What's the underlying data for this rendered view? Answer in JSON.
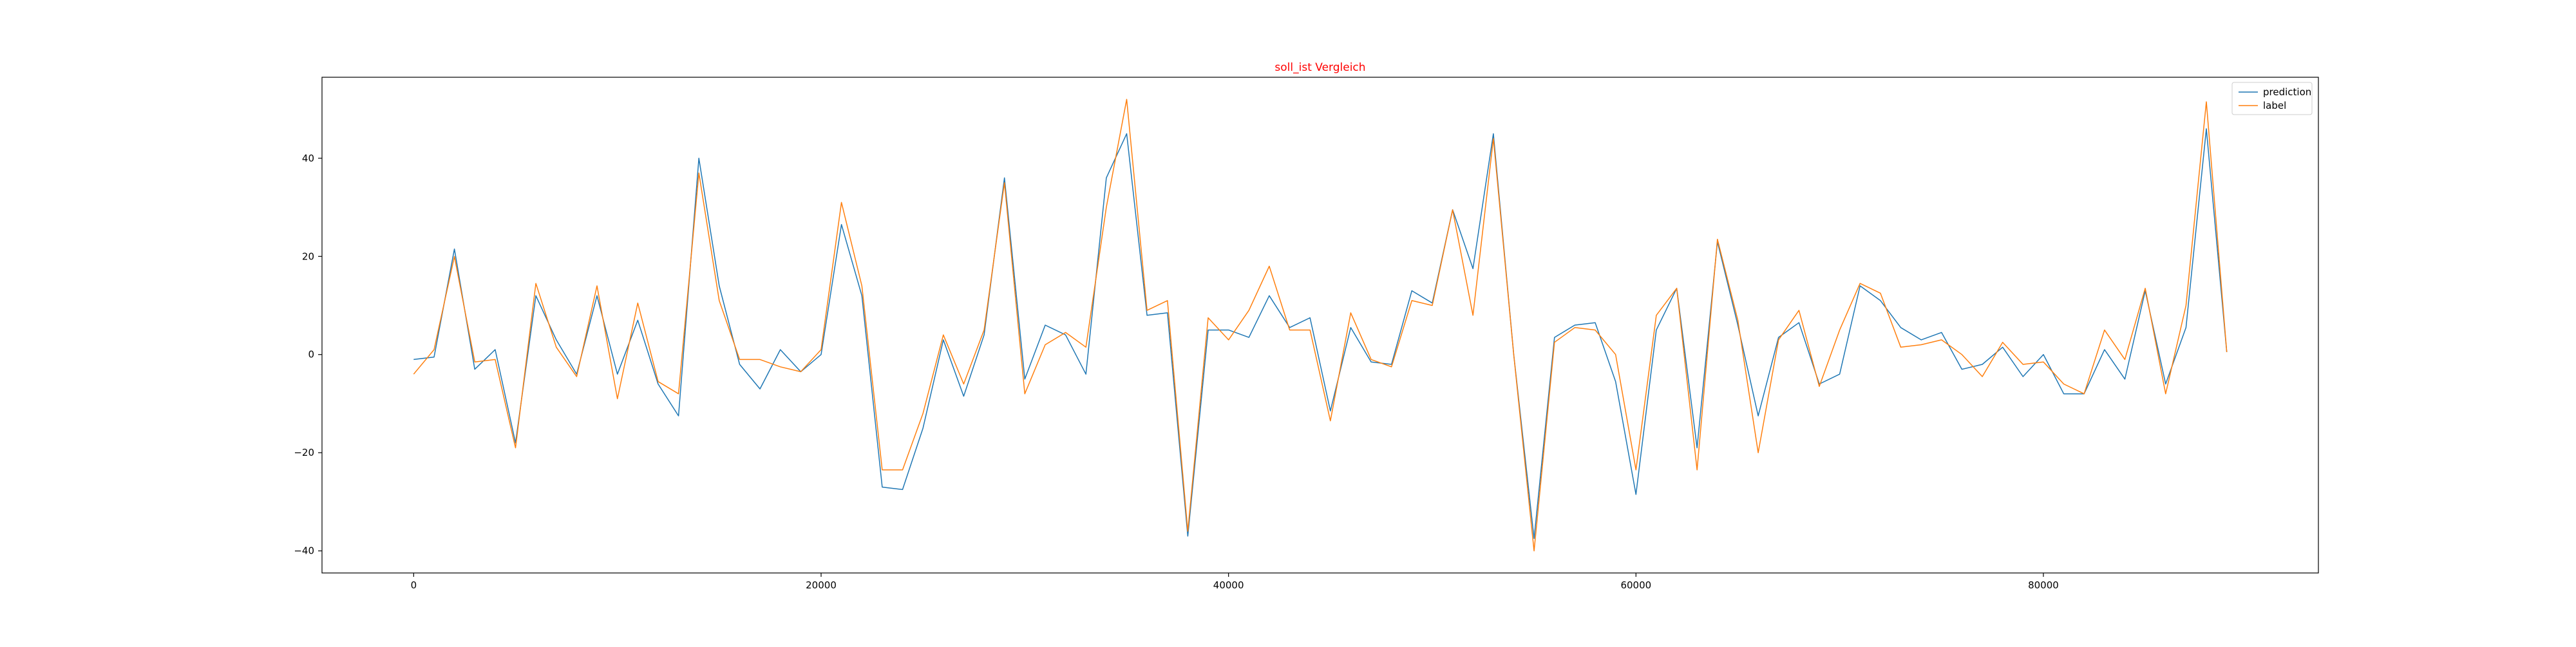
{
  "chart_data": {
    "type": "line",
    "title": "soll_ist Vergleich",
    "title_color": "#ff0000",
    "xlabel": "",
    "ylabel": "",
    "xlim": [
      -4500,
      93500
    ],
    "ylim": [
      -44.5,
      56.5
    ],
    "xticks": [
      0,
      20000,
      40000,
      60000,
      80000
    ],
    "yticks": [
      -40,
      -20,
      0,
      20,
      40
    ],
    "grid": false,
    "legend_position": "top-right",
    "x": [
      0,
      1000,
      2000,
      3000,
      4000,
      5000,
      6000,
      7000,
      8000,
      9000,
      10000,
      11000,
      12000,
      13000,
      14000,
      15000,
      16000,
      17000,
      18000,
      19000,
      20000,
      21000,
      22000,
      23000,
      24000,
      25000,
      26000,
      27000,
      28000,
      29000,
      30000,
      31000,
      32000,
      33000,
      34000,
      35000,
      36000,
      37000,
      38000,
      39000,
      40000,
      41000,
      42000,
      43000,
      44000,
      45000,
      46000,
      47000,
      48000,
      49000,
      50000,
      51000,
      52000,
      53000,
      54000,
      55000,
      56000,
      57000,
      58000,
      59000,
      60000,
      61000,
      62000,
      63000,
      64000,
      65000,
      66000,
      67000,
      68000,
      69000,
      70000,
      71000,
      72000,
      73000,
      74000,
      75000,
      76000,
      77000,
      78000,
      79000,
      80000,
      81000,
      82000,
      83000,
      84000,
      85000,
      86000,
      87000,
      88000,
      89000
    ],
    "series": [
      {
        "name": "prediction",
        "color": "#1f77b4",
        "values": [
          -1,
          -0.5,
          21.5,
          -3,
          1,
          -18,
          12,
          3,
          -4,
          12,
          -4,
          7,
          -6,
          -12.5,
          40,
          14,
          -2,
          -7,
          1,
          -3.5,
          0,
          26.5,
          12,
          -27,
          -27.5,
          -15,
          3,
          -8.5,
          4,
          36,
          -5,
          6,
          4,
          -4,
          36,
          45,
          8,
          8.5,
          -37,
          5,
          5,
          3.5,
          12,
          5.5,
          7.5,
          -11.5,
          5.5,
          -1.5,
          -2,
          13,
          10.5,
          29.5,
          17.5,
          45,
          0,
          -37.5,
          3.5,
          6,
          6.5,
          -5.5,
          -28.5,
          5,
          13.5,
          -19,
          23,
          6,
          -12.5,
          3.5,
          6.5,
          -6,
          -4,
          14,
          11,
          5.5,
          3,
          4.5,
          -3,
          -2,
          1.5,
          -4.5,
          0,
          -8,
          -8,
          1,
          -5,
          13,
          -6,
          5.5,
          46,
          0.5
        ]
      },
      {
        "name": "label",
        "color": "#ff7f0e",
        "values": [
          -4,
          1,
          20,
          -1.5,
          -1,
          -19,
          14.5,
          1.5,
          -4.5,
          14,
          -9,
          10.5,
          -5.5,
          -8,
          37,
          11,
          -1,
          -1,
          -2.5,
          -3.5,
          1,
          31,
          14,
          -23.5,
          -23.5,
          -12,
          4,
          -6,
          5,
          35,
          -8,
          2,
          4.5,
          1.5,
          30,
          52,
          9,
          11,
          -36,
          7.5,
          3,
          9,
          18,
          5,
          5,
          -13.5,
          8.5,
          -1,
          -2.5,
          11,
          10,
          29.5,
          8,
          44,
          0,
          -40,
          2.5,
          5.5,
          5,
          0,
          -23.5,
          8,
          13.5,
          -23.5,
          23.5,
          7,
          -20,
          3,
          9,
          -6.5,
          5,
          14.5,
          12.5,
          1.5,
          2,
          3,
          0,
          -4.5,
          2.5,
          -2,
          -1.5,
          -6,
          -8,
          5,
          -1,
          13.5,
          -8,
          10,
          51.5,
          0.5
        ]
      }
    ]
  }
}
